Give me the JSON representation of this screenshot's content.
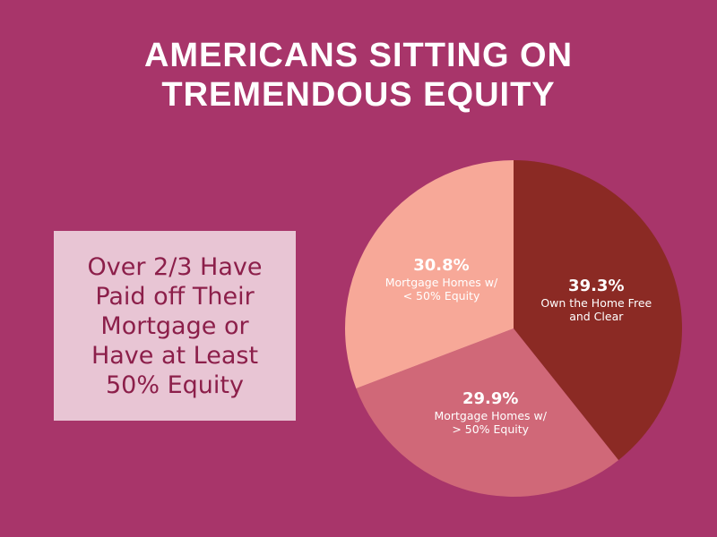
{
  "chart_data": {
    "type": "pie",
    "title": "AMERICANS SITTING ON TREMENDOUS EQUITY",
    "annotation": "Over 2/3 Have Paid off Their Mortgage or Have at Least 50% Equity",
    "categories": [
      "Own the Home Free and Clear",
      "Mortgage Homes w/ > 50% Equity",
      "Mortgage Homes w/ < 50% Equity"
    ],
    "values": [
      39.3,
      29.9,
      30.8
    ],
    "value_labels": [
      "39.3%",
      "29.9%",
      "30.8%"
    ],
    "colors": [
      "#8b2a24",
      "#d06878",
      "#f7a898"
    ]
  }
}
